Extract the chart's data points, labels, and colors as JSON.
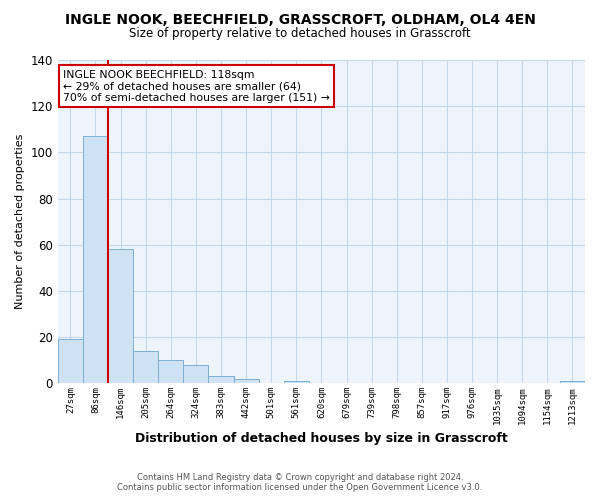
{
  "title": "INGLE NOOK, BEECHFIELD, GRASSCROFT, OLDHAM, OL4 4EN",
  "subtitle": "Size of property relative to detached houses in Grasscroft",
  "xlabel": "Distribution of detached houses by size in Grasscroft",
  "ylabel": "Number of detached properties",
  "categories": [
    "27sqm",
    "86sqm",
    "146sqm",
    "205sqm",
    "264sqm",
    "324sqm",
    "383sqm",
    "442sqm",
    "501sqm",
    "561sqm",
    "620sqm",
    "679sqm",
    "739sqm",
    "798sqm",
    "857sqm",
    "917sqm",
    "976sqm",
    "1035sqm",
    "1094sqm",
    "1154sqm",
    "1213sqm"
  ],
  "values": [
    19,
    107,
    58,
    14,
    10,
    8,
    3,
    2,
    0,
    1,
    0,
    0,
    0,
    0,
    0,
    0,
    0,
    0,
    0,
    0,
    1
  ],
  "bar_color": "#cfe2f3",
  "bar_edge_color": "#7bafd4",
  "vline_x": 1.5,
  "vline_color": "#cc0000",
  "ylim": [
    0,
    140
  ],
  "yticks": [
    0,
    20,
    40,
    60,
    80,
    100,
    120,
    140
  ],
  "annotation_text": "INGLE NOOK BEECHFIELD: 118sqm\n← 29% of detached houses are smaller (64)\n70% of semi-detached houses are larger (151) →",
  "annotation_box_color": "#ffffff",
  "annotation_box_edge": "#cc0000",
  "footer_line1": "Contains HM Land Registry data © Crown copyright and database right 2024.",
  "footer_line2": "Contains public sector information licensed under the Open Government Licence v3.0.",
  "background_color": "#ffffff",
  "plot_bg_color": "#eef4fb",
  "grid_color": "#c5d8ea"
}
